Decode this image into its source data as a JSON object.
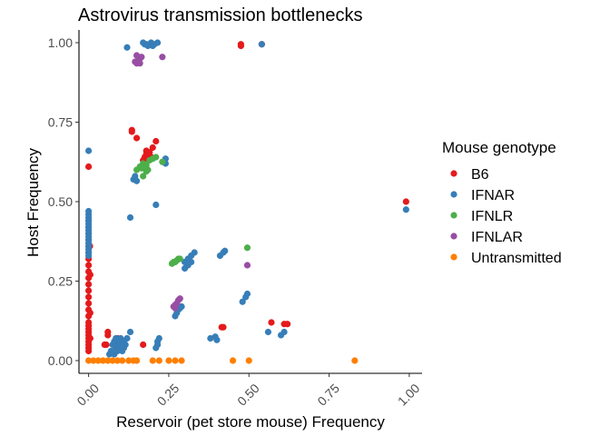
{
  "chart_data": {
    "type": "scatter",
    "title": "Astrovirus transmission bottlenecks",
    "xlabel": "Reservoir (pet store mouse) Frequency",
    "ylabel": "Host Frequency",
    "xlim": [
      -0.03,
      1.04
    ],
    "ylim": [
      -0.04,
      1.04
    ],
    "x_ticks": [
      0.0,
      0.25,
      0.5,
      0.75,
      1.0
    ],
    "x_tick_labels": [
      "0.00",
      "0.25",
      "0.50",
      "0.75",
      "1.00"
    ],
    "y_ticks": [
      0.0,
      0.25,
      0.5,
      0.75,
      1.0
    ],
    "y_tick_labels": [
      "0.00",
      "0.25",
      "0.50",
      "0.75",
      "1.00"
    ],
    "grid": false,
    "legend": {
      "title": "Mouse genotype",
      "position": "right"
    },
    "series": [
      {
        "name": "B6",
        "color": "#e41a1c",
        "points": [
          [
            0.0,
            0.61
          ],
          [
            0.0,
            0.44
          ],
          [
            0.0,
            0.42
          ],
          [
            0.0,
            0.4
          ],
          [
            0.0,
            0.38
          ],
          [
            0.0,
            0.36
          ],
          [
            0.0,
            0.34
          ],
          [
            0.0,
            0.32
          ],
          [
            0.0,
            0.3
          ],
          [
            0.0,
            0.28
          ],
          [
            0.0,
            0.26
          ],
          [
            0.0,
            0.24
          ],
          [
            0.0,
            0.22
          ],
          [
            0.0,
            0.2
          ],
          [
            0.0,
            0.18
          ],
          [
            0.0,
            0.16
          ],
          [
            0.0,
            0.14
          ],
          [
            0.0,
            0.12
          ],
          [
            0.0,
            0.11
          ],
          [
            0.0,
            0.1
          ],
          [
            0.0,
            0.09
          ],
          [
            0.0,
            0.08
          ],
          [
            0.0,
            0.07
          ],
          [
            0.0,
            0.06
          ],
          [
            0.0,
            0.05
          ],
          [
            0.0,
            0.04
          ],
          [
            0.0,
            0.03
          ],
          [
            0.005,
            0.27
          ],
          [
            0.005,
            0.15
          ],
          [
            0.005,
            0.07
          ],
          [
            0.004,
            0.36
          ],
          [
            0.06,
            0.09
          ],
          [
            0.06,
            0.08
          ],
          [
            0.055,
            0.05
          ],
          [
            0.05,
            0.05
          ],
          [
            0.09,
            0.07
          ],
          [
            0.1,
            0.06
          ],
          [
            0.17,
            0.05
          ],
          [
            0.135,
            0.725
          ],
          [
            0.135,
            0.72
          ],
          [
            0.15,
            0.7
          ],
          [
            0.17,
            0.63
          ],
          [
            0.175,
            0.64
          ],
          [
            0.18,
            0.65
          ],
          [
            0.19,
            0.655
          ],
          [
            0.2,
            0.67
          ],
          [
            0.21,
            0.69
          ],
          [
            0.185,
            0.635
          ],
          [
            0.195,
            0.64
          ],
          [
            0.18,
            0.66
          ],
          [
            0.415,
            0.105
          ],
          [
            0.42,
            0.105
          ],
          [
            0.57,
            0.12
          ],
          [
            0.61,
            0.115
          ],
          [
            0.62,
            0.115
          ],
          [
            0.475,
            0.995
          ],
          [
            0.475,
            0.99
          ],
          [
            0.54,
            0.995
          ],
          [
            0.99,
            0.5
          ]
        ]
      },
      {
        "name": "IFNAR",
        "color": "#377eb8",
        "points": [
          [
            0.0,
            0.66
          ],
          [
            0.0,
            0.47
          ],
          [
            0.0,
            0.46
          ],
          [
            0.0,
            0.45
          ],
          [
            0.0,
            0.44
          ],
          [
            0.0,
            0.43
          ],
          [
            0.0,
            0.42
          ],
          [
            0.0,
            0.41
          ],
          [
            0.0,
            0.4
          ],
          [
            0.0,
            0.39
          ],
          [
            0.0,
            0.38
          ],
          [
            0.0,
            0.37
          ],
          [
            0.0,
            0.36
          ],
          [
            0.0,
            0.35
          ],
          [
            0.0,
            0.34
          ],
          [
            0.0,
            0.33
          ],
          [
            0.08,
            0.06
          ],
          [
            0.085,
            0.07
          ],
          [
            0.09,
            0.05
          ],
          [
            0.1,
            0.04
          ],
          [
            0.09,
            0.03
          ],
          [
            0.07,
            0.03
          ],
          [
            0.08,
            0.02
          ],
          [
            0.1,
            0.05
          ],
          [
            0.11,
            0.06
          ],
          [
            0.12,
            0.07
          ],
          [
            0.085,
            0.04
          ],
          [
            0.075,
            0.05
          ],
          [
            0.095,
            0.06
          ],
          [
            0.105,
            0.03
          ],
          [
            0.13,
            0.09
          ],
          [
            0.065,
            0.02
          ],
          [
            0.115,
            0.05
          ],
          [
            0.1,
            0.07
          ],
          [
            0.11,
            0.04
          ],
          [
            0.21,
            0.04
          ],
          [
            0.215,
            0.06
          ],
          [
            0.22,
            0.07
          ],
          [
            0.215,
            0.05
          ],
          [
            0.13,
            0.45
          ],
          [
            0.14,
            0.57
          ],
          [
            0.15,
            0.565
          ],
          [
            0.145,
            0.58
          ],
          [
            0.21,
            0.49
          ],
          [
            0.24,
            0.635
          ],
          [
            0.24,
            0.62
          ],
          [
            0.12,
            0.985
          ],
          [
            0.17,
            1.0
          ],
          [
            0.18,
            0.995
          ],
          [
            0.19,
            0.995
          ],
          [
            0.195,
            1.0
          ],
          [
            0.205,
            0.995
          ],
          [
            0.215,
            1.0
          ],
          [
            0.185,
            0.99
          ],
          [
            0.175,
            0.995
          ],
          [
            0.2,
            0.99
          ],
          [
            0.27,
            0.14
          ],
          [
            0.275,
            0.15
          ],
          [
            0.28,
            0.16
          ],
          [
            0.285,
            0.165
          ],
          [
            0.29,
            0.17
          ],
          [
            0.3,
            0.31
          ],
          [
            0.31,
            0.32
          ],
          [
            0.32,
            0.33
          ],
          [
            0.3,
            0.29
          ],
          [
            0.31,
            0.3
          ],
          [
            0.33,
            0.34
          ],
          [
            0.32,
            0.31
          ],
          [
            0.41,
            0.33
          ],
          [
            0.42,
            0.34
          ],
          [
            0.425,
            0.345
          ],
          [
            0.395,
            0.075
          ],
          [
            0.4,
            0.065
          ],
          [
            0.38,
            0.07
          ],
          [
            0.48,
            0.185
          ],
          [
            0.49,
            0.2
          ],
          [
            0.495,
            0.21
          ],
          [
            0.56,
            0.09
          ],
          [
            0.6,
            0.08
          ],
          [
            0.61,
            0.09
          ],
          [
            0.54,
            0.995
          ],
          [
            0.99,
            0.475
          ]
        ]
      },
      {
        "name": "IFNLR",
        "color": "#4daf4a",
        "points": [
          [
            0.15,
            0.6
          ],
          [
            0.16,
            0.61
          ],
          [
            0.165,
            0.605
          ],
          [
            0.17,
            0.62
          ],
          [
            0.18,
            0.615
          ],
          [
            0.19,
            0.63
          ],
          [
            0.2,
            0.635
          ],
          [
            0.17,
            0.58
          ],
          [
            0.18,
            0.595
          ],
          [
            0.185,
            0.6
          ],
          [
            0.21,
            0.64
          ],
          [
            0.23,
            0.625
          ],
          [
            0.175,
            0.61
          ],
          [
            0.26,
            0.305
          ],
          [
            0.265,
            0.31
          ],
          [
            0.27,
            0.31
          ],
          [
            0.275,
            0.315
          ],
          [
            0.28,
            0.32
          ],
          [
            0.285,
            0.32
          ],
          [
            0.495,
            0.355
          ]
        ]
      },
      {
        "name": "IFNLAR",
        "color": "#984ea3",
        "points": [
          [
            0.145,
            0.94
          ],
          [
            0.15,
            0.935
          ],
          [
            0.155,
            0.945
          ],
          [
            0.16,
            0.95
          ],
          [
            0.165,
            0.955
          ],
          [
            0.15,
            0.96
          ],
          [
            0.16,
            0.935
          ],
          [
            0.23,
            0.955
          ],
          [
            0.265,
            0.17
          ],
          [
            0.27,
            0.175
          ],
          [
            0.275,
            0.18
          ],
          [
            0.28,
            0.19
          ],
          [
            0.285,
            0.195
          ],
          [
            0.27,
            0.165
          ],
          [
            0.495,
            0.3
          ]
        ]
      },
      {
        "name": "Untransmitted",
        "color": "#ff7f00",
        "points": [
          [
            0.0,
            0.0
          ],
          [
            0.015,
            0.0
          ],
          [
            0.03,
            0.0
          ],
          [
            0.045,
            0.0
          ],
          [
            0.06,
            0.0
          ],
          [
            0.075,
            0.0
          ],
          [
            0.09,
            0.0
          ],
          [
            0.105,
            0.0
          ],
          [
            0.125,
            0.0
          ],
          [
            0.14,
            0.0
          ],
          [
            0.15,
            0.0
          ],
          [
            0.2,
            0.0
          ],
          [
            0.22,
            0.0
          ],
          [
            0.25,
            0.0
          ],
          [
            0.27,
            0.0
          ],
          [
            0.29,
            0.0
          ],
          [
            0.45,
            0.0
          ],
          [
            0.5,
            0.0
          ],
          [
            0.83,
            0.0
          ]
        ]
      }
    ]
  }
}
